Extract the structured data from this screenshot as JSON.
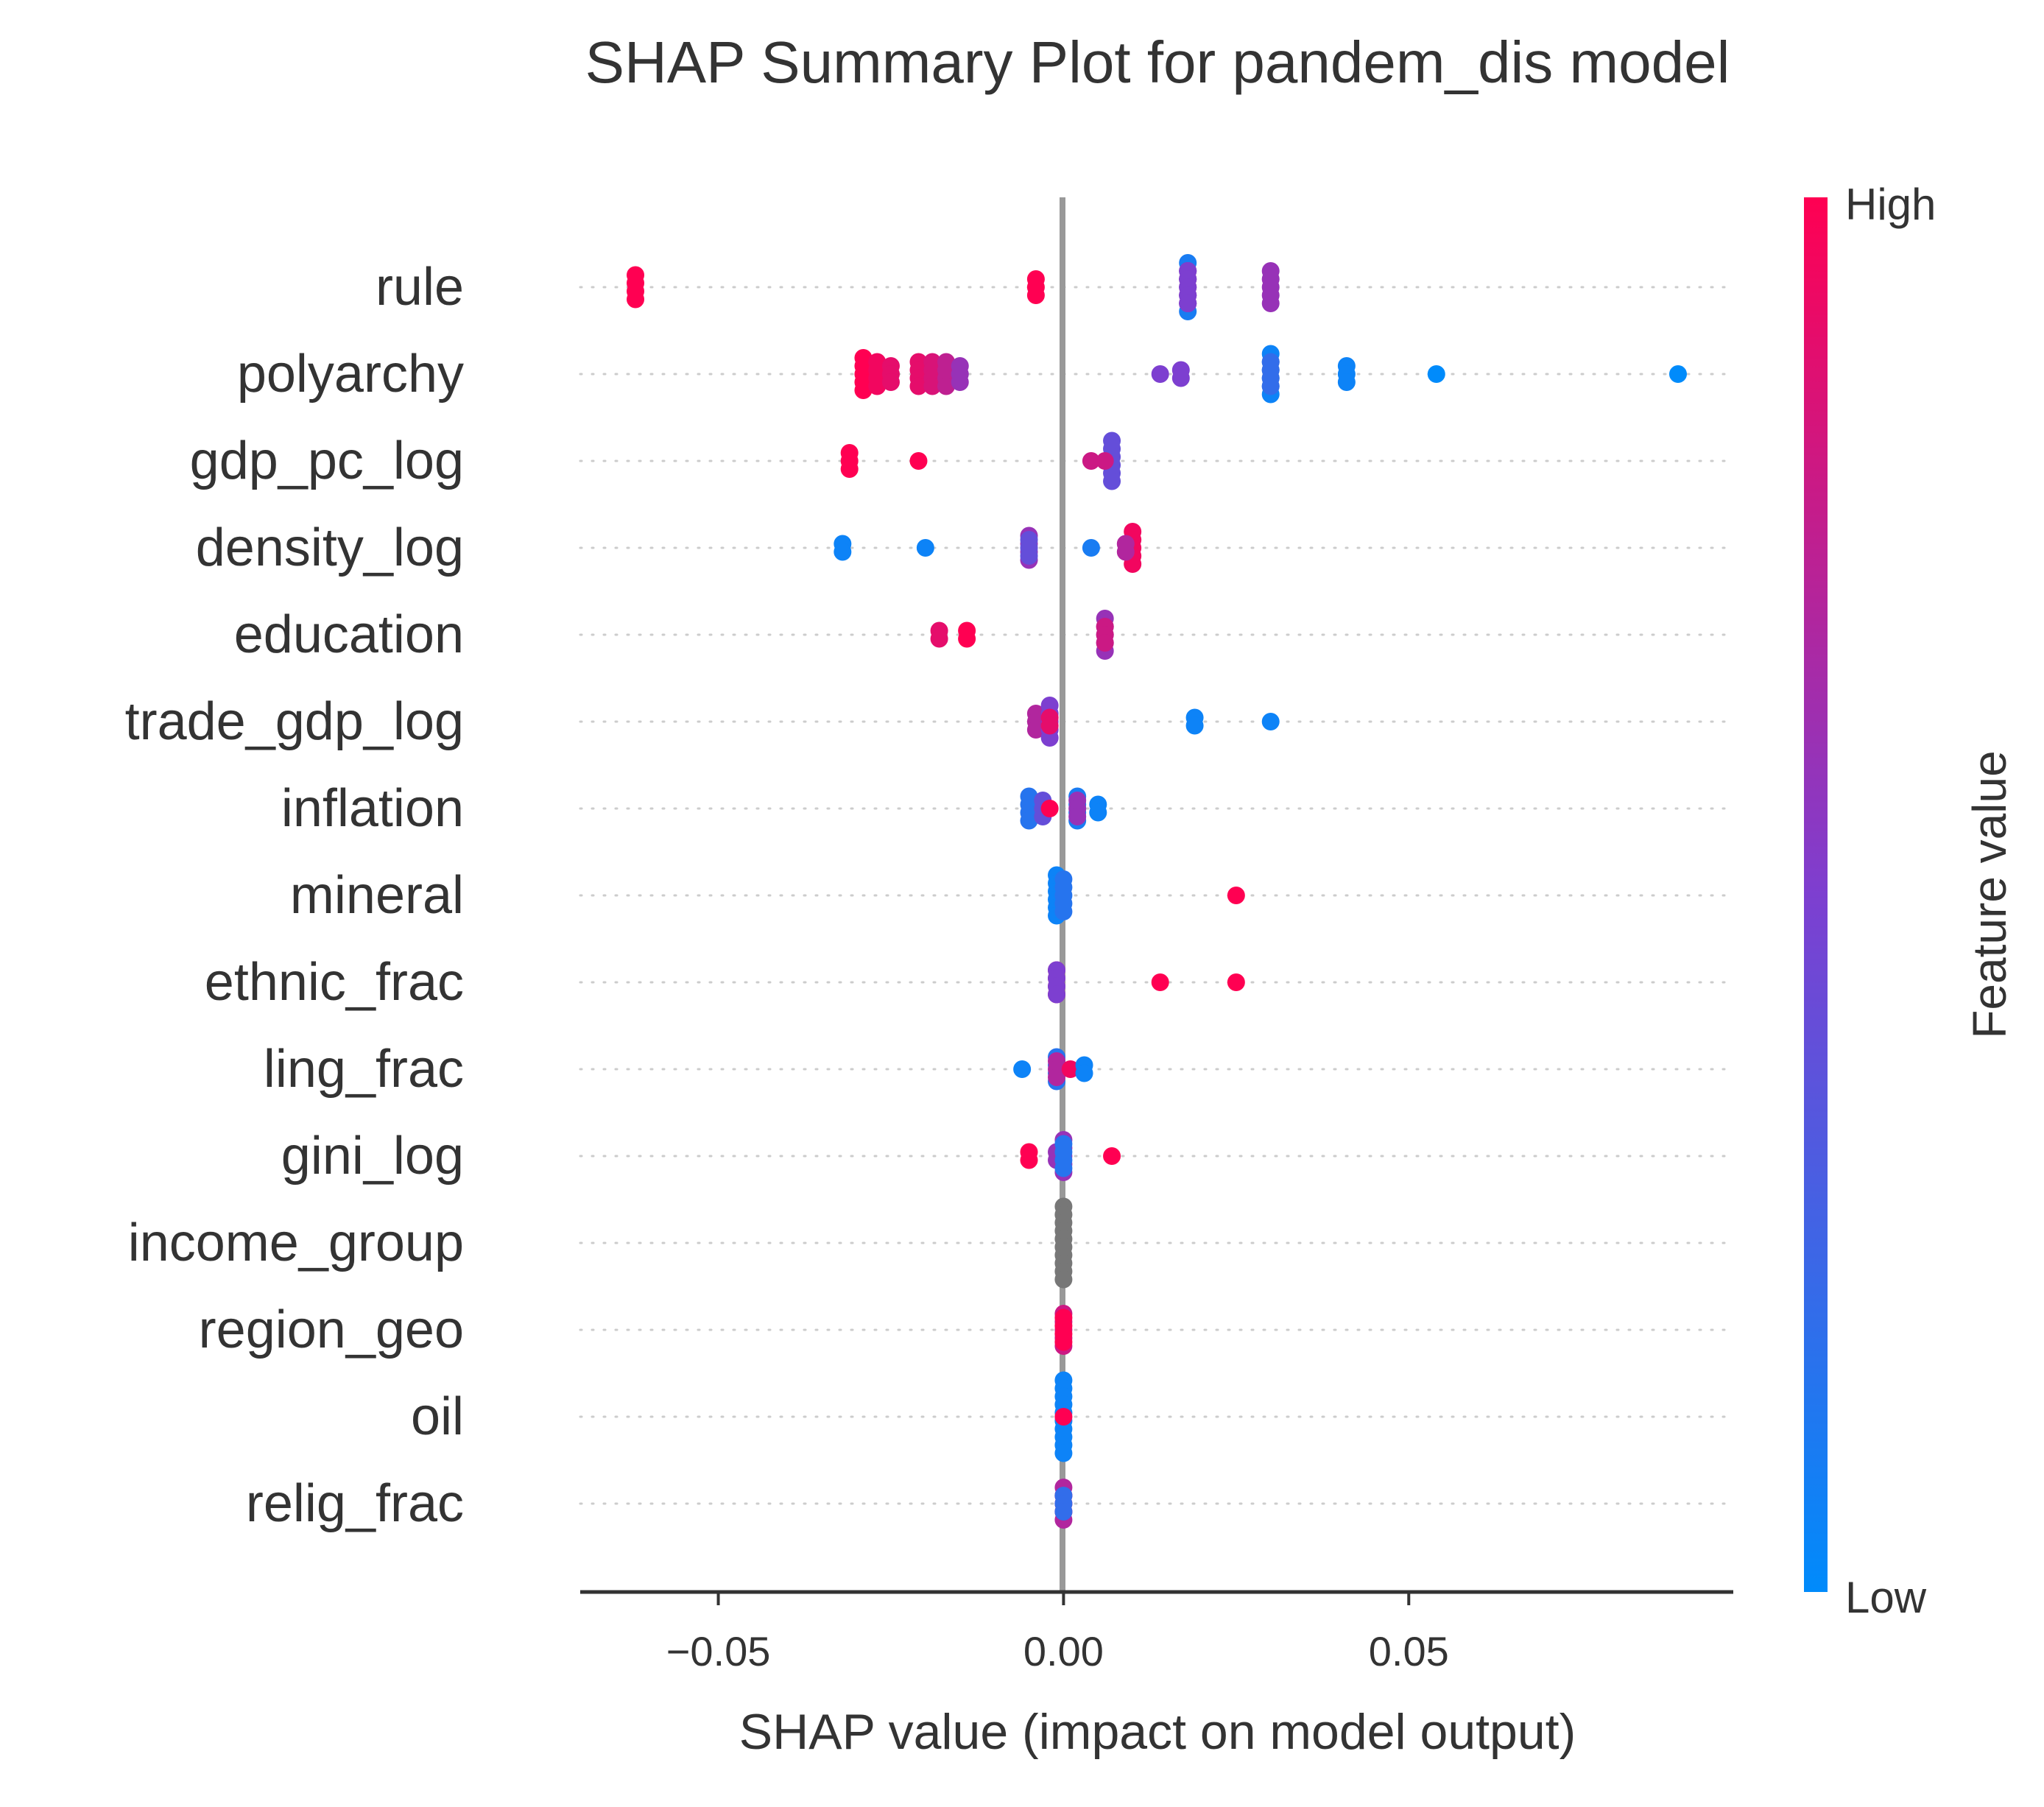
{
  "chart_data": {
    "type": "scatter",
    "title": "SHAP Summary Plot for pandem_dis model",
    "xlabel": "SHAP value (impact on model output)",
    "ylabel": "",
    "xlim": [
      -0.07,
      0.097
    ],
    "x_ticks": [
      -0.05,
      0.0,
      0.05
    ],
    "x_tick_labels": [
      "−0.05",
      "0.00",
      "0.05"
    ],
    "grid": "dotted horizontal guide per feature",
    "colorbar": {
      "label": "Feature value",
      "high_label": "High",
      "low_label": "Low",
      "low_color": "#008bfb",
      "mid_color": "#7d3fd0",
      "high_color": "#ff0052",
      "missing_color": "#777777"
    },
    "features": [
      {
        "name": "rule",
        "points": [
          [
            -0.062,
            1,
            4
          ],
          [
            -0.004,
            1,
            3
          ],
          [
            0.018,
            0.1,
            7
          ],
          [
            0.018,
            0.9,
            5
          ],
          [
            0.018,
            0.5,
            5
          ],
          [
            0.03,
            0.6,
            5
          ]
        ]
      },
      {
        "name": "polyarchy",
        "points": [
          [
            -0.029,
            1,
            5
          ],
          [
            -0.027,
            0.95,
            4
          ],
          [
            -0.025,
            0.9,
            3
          ],
          [
            -0.021,
            0.9,
            4
          ],
          [
            -0.019,
            0.85,
            4
          ],
          [
            -0.017,
            0.75,
            4
          ],
          [
            -0.015,
            0.6,
            3
          ],
          [
            0.014,
            0.5,
            1
          ],
          [
            0.017,
            0.5,
            2
          ],
          [
            0.03,
            0.05,
            6
          ],
          [
            0.03,
            0.2,
            4
          ],
          [
            0.041,
            0.05,
            3
          ],
          [
            0.054,
            0,
            1
          ],
          [
            0.089,
            0,
            1
          ]
        ]
      },
      {
        "name": "gdp_pc_log",
        "points": [
          [
            -0.031,
            1,
            3
          ],
          [
            -0.021,
            1,
            1
          ],
          [
            0.004,
            0.8,
            1
          ],
          [
            0.007,
            0.4,
            6
          ],
          [
            0.006,
            0.8,
            1
          ]
        ]
      },
      {
        "name": "density_log",
        "points": [
          [
            -0.032,
            0.05,
            2
          ],
          [
            -0.02,
            0.05,
            1
          ],
          [
            -0.005,
            0.6,
            4
          ],
          [
            -0.005,
            0.4,
            3
          ],
          [
            0.004,
            0.1,
            1
          ],
          [
            0.01,
            0.95,
            5
          ],
          [
            0.009,
            0.7,
            2
          ]
        ]
      },
      {
        "name": "education",
        "points": [
          [
            -0.018,
            0.9,
            2
          ],
          [
            -0.014,
            1,
            2
          ],
          [
            0.006,
            0.6,
            5
          ],
          [
            0.006,
            0.8,
            3
          ]
        ]
      },
      {
        "name": "trade_gdp_log",
        "points": [
          [
            -0.004,
            0.7,
            3
          ],
          [
            -0.002,
            0.5,
            5
          ],
          [
            -0.002,
            0.9,
            2
          ],
          [
            0.019,
            0.05,
            2
          ],
          [
            0.03,
            0.05,
            1
          ]
        ]
      },
      {
        "name": "inflation",
        "points": [
          [
            -0.005,
            0.15,
            4
          ],
          [
            -0.003,
            0.4,
            3
          ],
          [
            -0.002,
            1,
            1
          ],
          [
            0.002,
            0.1,
            4
          ],
          [
            0.002,
            0.6,
            3
          ],
          [
            0.005,
            0.05,
            2
          ]
        ]
      },
      {
        "name": "mineral",
        "points": [
          [
            -0.001,
            0.05,
            6
          ],
          [
            0,
            0.15,
            5
          ],
          [
            0.025,
            1,
            1
          ]
        ]
      },
      {
        "name": "ethnic_frac",
        "points": [
          [
            -0.001,
            0.9,
            4
          ],
          [
            -0.001,
            0.5,
            4
          ],
          [
            0.014,
            1,
            1
          ],
          [
            0.025,
            1,
            1
          ]
        ]
      },
      {
        "name": "ling_frac",
        "points": [
          [
            -0.006,
            0.05,
            1
          ],
          [
            -0.001,
            0.15,
            4
          ],
          [
            -0.001,
            0.7,
            3
          ],
          [
            0.001,
            0.95,
            1
          ],
          [
            0.003,
            0.05,
            2
          ]
        ]
      },
      {
        "name": "gini_log",
        "points": [
          [
            -0.005,
            1,
            2
          ],
          [
            -0.001,
            0.6,
            2
          ],
          [
            0,
            0.6,
            5
          ],
          [
            0,
            0.15,
            4
          ],
          [
            0.007,
            1,
            1
          ]
        ]
      },
      {
        "name": "income_group",
        "points": [
          [
            0,
            null,
            10
          ]
        ]
      },
      {
        "name": "region_geo",
        "points": [
          [
            0,
            0.8,
            5
          ],
          [
            0,
            1,
            4
          ]
        ]
      },
      {
        "name": "oil",
        "points": [
          [
            0,
            0.05,
            10
          ],
          [
            0,
            1,
            1
          ]
        ]
      },
      {
        "name": "relig_frac",
        "points": [
          [
            0,
            0.7,
            5
          ],
          [
            0,
            0.95,
            3
          ],
          [
            0,
            0.2,
            3
          ]
        ]
      }
    ]
  }
}
